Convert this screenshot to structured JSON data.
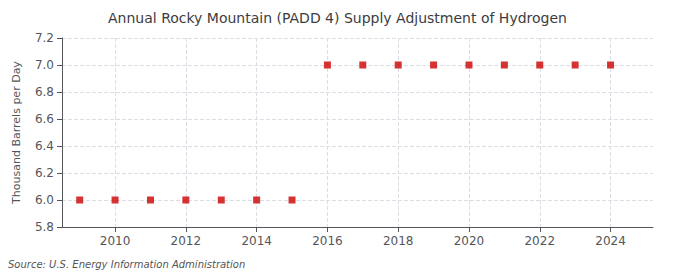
{
  "chart_data": {
    "type": "scatter",
    "title": "Annual Rocky Mountain (PADD 4) Supply Adjustment of Hydrogen",
    "ylabel": "Thousand Barrels per Day",
    "annotation": "Source: U.S. Energy Information Administration",
    "x": [
      2009,
      2010,
      2011,
      2012,
      2013,
      2014,
      2015,
      2016,
      2017,
      2018,
      2019,
      2020,
      2021,
      2022,
      2023,
      2024
    ],
    "values": [
      6.0,
      6.0,
      6.0,
      6.0,
      6.0,
      6.0,
      6.0,
      7.0,
      7.0,
      7.0,
      7.0,
      7.0,
      7.0,
      7.0,
      7.0,
      7.0
    ],
    "color": "#cc0000",
    "marker": "square",
    "xlim": [
      2008.5,
      2025.2
    ],
    "xticks": [
      2010,
      2012,
      2014,
      2016,
      2018,
      2020,
      2022,
      2024
    ],
    "ylim": [
      5.8,
      7.2
    ],
    "yticks": [
      5.8,
      {
        "value": 6.0,
        "label": "6.0"
      },
      6.2,
      6.4,
      6.6,
      6.8,
      {
        "value": 7.0,
        "label": "7.0"
      },
      7.2
    ],
    "grid": true
  }
}
